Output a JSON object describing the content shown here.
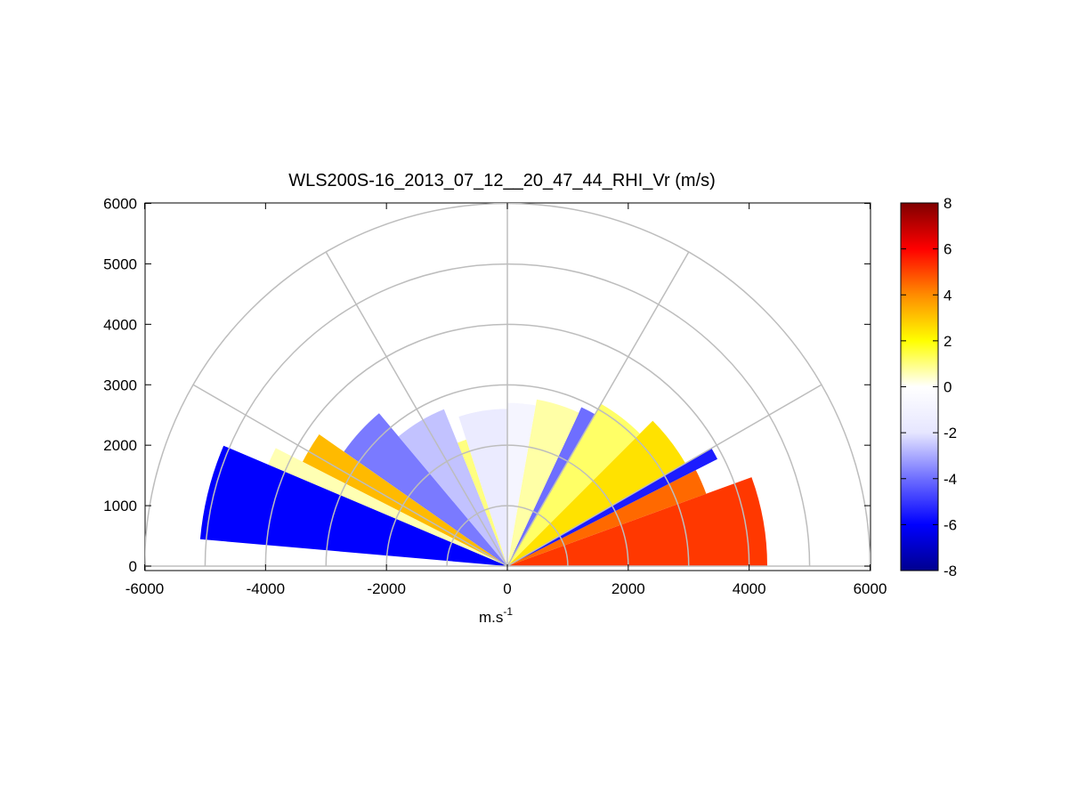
{
  "chart_data": {
    "type": "heatmap",
    "projection": "polar-rhi",
    "title": "WLS200S-16_2013_07_12__20_47_44_RHI_Vr (m/s)",
    "xlabel_base": "m.s",
    "xlabel_exp": "-1",
    "xlim": [
      -6000,
      6000
    ],
    "ylim": [
      0,
      6000
    ],
    "x_ticks": [
      "-6000",
      "-4000",
      "-2000",
      "0",
      "2000",
      "4000",
      "6000"
    ],
    "y_ticks": [
      "0",
      "1000",
      "2000",
      "3000",
      "4000",
      "5000",
      "6000"
    ],
    "range_rings": [
      1000,
      2000,
      3000,
      4000,
      5000,
      6000
    ],
    "radial_lines_deg": [
      30,
      60,
      90,
      120,
      150
    ],
    "grid": true,
    "colorbar": {
      "min": -8,
      "max": 8,
      "ticks": [
        "-8",
        "-6",
        "-4",
        "-2",
        "0",
        "2",
        "4",
        "6",
        "8"
      ],
      "colormap": [
        "#00008f",
        "#0000ff",
        "#6e6eff",
        "#e6e6ff",
        "#ffffff",
        "#ffff00",
        "#ff8c00",
        "#ff0000",
        "#800000"
      ]
    },
    "sectors": [
      {
        "az_from": 0,
        "az_to": 20,
        "r_max": 4300,
        "vr": 5.2
      },
      {
        "az_from": 20,
        "az_to": 27,
        "r_max": 3500,
        "vr": 4.5
      },
      {
        "az_from": 27,
        "az_to": 30,
        "r_max": 3900,
        "vr": -5.5
      },
      {
        "az_from": 30,
        "az_to": 45,
        "r_max": 3400,
        "vr": 2.5
      },
      {
        "az_from": 45,
        "az_to": 60,
        "r_max": 3100,
        "vr": 1.2
      },
      {
        "az_from": 60,
        "az_to": 65,
        "r_max": 2900,
        "vr": -4.0
      },
      {
        "az_from": 65,
        "az_to": 80,
        "r_max": 2800,
        "vr": 0.7
      },
      {
        "az_from": 80,
        "az_to": 90,
        "r_max": 2700,
        "vr": -0.8
      },
      {
        "az_from": 90,
        "az_to": 108,
        "r_max": 2600,
        "vr": -1.6
      },
      {
        "az_from": 108,
        "az_to": 112,
        "r_max": 2200,
        "vr": 1.0
      },
      {
        "az_from": 112,
        "az_to": 130,
        "r_max": 2800,
        "vr": -2.6
      },
      {
        "az_from": 130,
        "az_to": 145,
        "r_max": 3300,
        "vr": -3.8
      },
      {
        "az_from": 145,
        "az_to": 153,
        "r_max": 3800,
        "vr": 3.2
      },
      {
        "az_from": 153,
        "az_to": 157,
        "r_max": 4300,
        "vr": 0.6
      },
      {
        "az_from": 157,
        "az_to": 175,
        "r_max": 5100,
        "vr": -6.0
      }
    ]
  }
}
